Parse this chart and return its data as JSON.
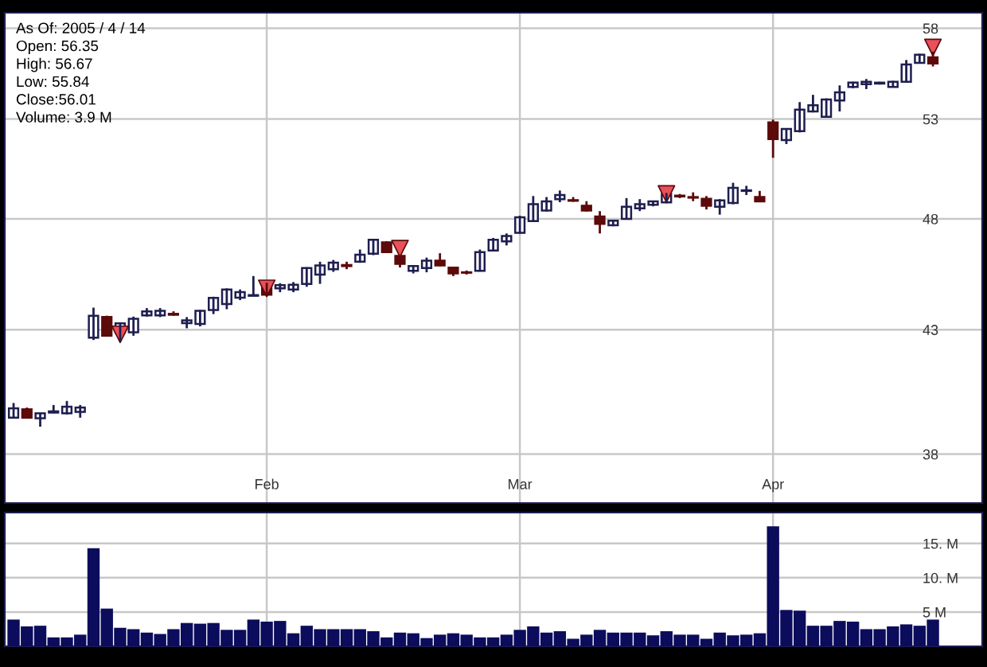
{
  "chart_data": [
    {
      "type": "candlestick",
      "annotations": [
        "As Of: 2005 / 4 / 14",
        "Open: 56.35",
        "High: 56.67",
        "Low: 55.84",
        "Close:56.01",
        "Volume: 3.9 M"
      ],
      "categories": [
        null,
        null,
        null,
        null,
        null,
        null,
        null,
        null,
        null,
        null,
        null,
        null,
        null,
        null,
        null,
        null,
        null,
        null,
        null,
        "Feb",
        null,
        null,
        null,
        null,
        null,
        null,
        null,
        null,
        null,
        null,
        null,
        null,
        null,
        null,
        null,
        null,
        null,
        null,
        "Mar",
        null,
        null,
        null,
        null,
        null,
        null,
        null,
        null,
        null,
        null,
        null,
        null,
        null,
        null,
        null,
        null,
        null,
        null,
        "Apr",
        null,
        null,
        null,
        null,
        null,
        null,
        null,
        null,
        null,
        null,
        null,
        null
      ],
      "ohlc": [
        [
          39.4,
          39.98,
          39.37,
          39.77
        ],
        [
          39.73,
          39.8,
          39.38,
          39.4
        ],
        [
          39.38,
          39.6,
          39.05,
          39.57
        ],
        [
          39.6,
          39.9,
          39.58,
          39.65
        ],
        [
          39.57,
          40.06,
          39.53,
          39.83
        ],
        [
          39.63,
          39.9,
          39.4,
          39.8
        ],
        [
          42.66,
          43.95,
          42.56,
          43.6
        ],
        [
          43.54,
          43.6,
          42.7,
          42.74
        ],
        [
          42.87,
          43.3,
          42.5,
          43.27
        ],
        [
          42.89,
          43.56,
          42.74,
          43.47
        ],
        [
          43.61,
          43.93,
          43.56,
          43.79
        ],
        [
          43.61,
          43.93,
          43.54,
          43.81
        ],
        [
          43.68,
          43.79,
          43.6,
          43.64
        ],
        [
          43.28,
          43.54,
          43.06,
          43.4
        ],
        [
          43.24,
          43.85,
          43.14,
          43.81
        ],
        [
          43.85,
          44.43,
          43.67,
          44.38
        ],
        [
          44.11,
          44.8,
          43.88,
          44.75
        ],
        [
          44.39,
          44.75,
          44.28,
          44.63
        ],
        [
          44.47,
          45.35,
          44.45,
          44.5
        ],
        [
          45.01,
          45.05,
          44.45,
          44.52
        ],
        [
          44.8,
          45.03,
          44.63,
          44.94
        ],
        [
          44.75,
          45.08,
          44.63,
          44.96
        ],
        [
          45.0,
          45.75,
          44.87,
          45.71
        ],
        [
          45.42,
          46.0,
          45.0,
          45.83
        ],
        [
          45.66,
          46.08,
          45.54,
          45.96
        ],
        [
          45.85,
          46.0,
          45.66,
          45.8
        ],
        [
          46.0,
          46.56,
          45.95,
          46.32
        ],
        [
          46.37,
          47.05,
          46.3,
          47.01
        ],
        [
          46.89,
          46.95,
          46.4,
          46.44
        ],
        [
          46.27,
          46.3,
          45.74,
          45.9
        ],
        [
          45.59,
          45.85,
          45.47,
          45.8
        ],
        [
          45.71,
          46.19,
          45.52,
          46.05
        ],
        [
          46.05,
          46.39,
          45.8,
          45.83
        ],
        [
          45.73,
          45.75,
          45.35,
          45.47
        ],
        [
          45.52,
          45.6,
          45.42,
          45.5
        ],
        [
          45.59,
          46.56,
          45.55,
          46.44
        ],
        [
          46.51,
          47.1,
          46.5,
          47.01
        ],
        [
          46.94,
          47.31,
          46.75,
          47.19
        ],
        [
          47.34,
          48.15,
          47.3,
          48.07
        ],
        [
          47.89,
          49.1,
          47.85,
          48.71
        ],
        [
          48.4,
          49.05,
          48.35,
          48.84
        ],
        [
          48.95,
          49.37,
          48.8,
          49.15
        ],
        [
          48.9,
          49.05,
          48.82,
          48.87
        ],
        [
          48.63,
          48.85,
          48.35,
          48.4
        ],
        [
          48.11,
          48.37,
          47.31,
          47.76
        ],
        [
          47.7,
          47.95,
          47.65,
          47.91
        ],
        [
          48.0,
          49.0,
          47.98,
          48.58
        ],
        [
          48.5,
          48.95,
          48.37,
          48.71
        ],
        [
          48.68,
          48.85,
          48.6,
          48.84
        ],
        [
          48.79,
          49.25,
          48.75,
          49.2
        ],
        [
          49.12,
          49.2,
          49.0,
          49.08
        ],
        [
          49.05,
          49.28,
          48.85,
          49.02
        ],
        [
          48.97,
          49.1,
          48.45,
          48.63
        ],
        [
          48.58,
          48.95,
          48.2,
          48.89
        ],
        [
          48.76,
          49.75,
          48.7,
          49.5
        ],
        [
          49.35,
          49.6,
          49.15,
          49.38
        ],
        [
          49.05,
          49.35,
          48.8,
          48.84
        ],
        [
          52.83,
          52.97,
          51.0,
          51.96
        ],
        [
          51.9,
          52.5,
          51.7,
          52.48
        ],
        [
          52.37,
          53.9,
          52.3,
          53.5
        ],
        [
          53.4,
          54.29,
          53.35,
          53.73
        ],
        [
          53.12,
          54.1,
          53.1,
          54.04
        ],
        [
          53.99,
          54.8,
          53.4,
          54.43
        ],
        [
          54.72,
          55.0,
          54.65,
          54.95
        ],
        [
          54.87,
          55.15,
          54.6,
          55.0
        ],
        [
          54.9,
          55.0,
          54.85,
          54.95
        ],
        [
          54.72,
          55.05,
          54.7,
          55.0
        ],
        [
          55.0,
          56.2,
          54.97,
          55.95
        ],
        [
          56.04,
          56.55,
          56.0,
          56.49
        ],
        [
          56.35,
          56.67,
          55.84,
          56.01
        ]
      ],
      "colors": [
        "#ffffff",
        "#5c0a0a",
        "#ffffff",
        "#ffffff",
        "#ffffff",
        "#ffffff",
        "#ffffff",
        "#5c0a0a",
        "#ffffff",
        "#ffffff",
        "#ffffff",
        "#ffffff",
        "#5c0a0a",
        "#ffffff",
        "#ffffff",
        "#ffffff",
        "#ffffff",
        "#ffffff",
        "#ffffff",
        "#5c0a0a",
        "#ffffff",
        "#ffffff",
        "#ffffff",
        "#ffffff",
        "#ffffff",
        "#5c0a0a",
        "#ffffff",
        "#ffffff",
        "#5c0a0a",
        "#5c0a0a",
        "#ffffff",
        "#ffffff",
        "#5c0a0a",
        "#5c0a0a",
        "#5c0a0a",
        "#ffffff",
        "#ffffff",
        "#ffffff",
        "#ffffff",
        "#ffffff",
        "#ffffff",
        "#ffffff",
        "#5c0a0a",
        "#5c0a0a",
        "#5c0a0a",
        "#ffffff",
        "#ffffff",
        "#ffffff",
        "#ffffff",
        "#ffffff",
        "#5c0a0a",
        "#5c0a0a",
        "#5c0a0a",
        "#ffffff",
        "#ffffff",
        "#ffffff",
        "#5c0a0a",
        "#5c0a0a",
        "#ffffff",
        "#ffffff",
        "#ffffff",
        "#ffffff",
        "#ffffff",
        "#ffffff",
        "#ffffff",
        "#ffffff",
        "#ffffff",
        "#ffffff",
        "#ffffff",
        "#5c0a0a"
      ],
      "series": [
        {
          "type": "scatter",
          "marker": "triangle",
          "color": "#e8505a",
          "values": [
            null,
            null,
            null,
            null,
            null,
            null,
            null,
            null,
            42.8,
            null,
            null,
            null,
            null,
            null,
            null,
            null,
            null,
            null,
            null,
            44.8,
            null,
            null,
            null,
            null,
            null,
            null,
            null,
            null,
            null,
            46.6,
            null,
            null,
            null,
            null,
            null,
            null,
            null,
            null,
            null,
            null,
            null,
            null,
            null,
            null,
            null,
            null,
            null,
            null,
            null,
            49.2,
            null,
            null,
            null,
            null,
            null,
            null,
            null,
            null,
            null,
            null,
            null,
            null,
            null,
            null,
            null,
            null,
            null,
            null,
            null,
            56.9
          ]
        }
      ],
      "log": true,
      "ylim": [
        36.2,
        58.9
      ],
      "yticks": [
        38,
        43,
        48,
        53,
        58
      ],
      "grid": true
    },
    {
      "type": "bar",
      "color": "#0c0c5c",
      "tick_labels": "y",
      "categories": [
        null,
        null,
        null,
        null,
        null,
        null,
        null,
        null,
        null,
        null,
        null,
        null,
        null,
        null,
        null,
        null,
        null,
        null,
        null,
        null,
        null,
        null,
        null,
        null,
        null,
        null,
        null,
        null,
        null,
        null,
        null,
        null,
        null,
        null,
        null,
        null,
        null,
        null,
        null,
        null,
        null,
        null,
        null,
        null,
        null,
        null,
        null,
        null,
        null,
        null,
        null,
        null,
        null,
        null,
        null,
        null,
        null,
        null,
        null,
        null,
        null,
        null,
        null,
        null,
        null,
        null,
        null,
        null,
        null,
        null
      ],
      "values": [
        3.9,
        2.9,
        3.0,
        1.3,
        1.3,
        1.7,
        14.3,
        5.5,
        2.7,
        2.5,
        2.0,
        1.8,
        2.5,
        3.4,
        3.3,
        3.4,
        2.4,
        2.4,
        3.9,
        3.6,
        3.7,
        1.9,
        3.0,
        2.5,
        2.5,
        2.5,
        2.5,
        2.2,
        1.3,
        2.0,
        1.9,
        1.2,
        1.7,
        1.9,
        1.7,
        1.3,
        1.3,
        1.7,
        2.4,
        2.9,
        2.0,
        2.2,
        1.1,
        1.7,
        2.4,
        2.0,
        2.0,
        2.0,
        1.6,
        2.2,
        1.7,
        1.7,
        1.1,
        2.0,
        1.6,
        1.7,
        1.9,
        17.5,
        5.3,
        5.2,
        3.0,
        3.0,
        3.7,
        3.6,
        2.5,
        2.5,
        2.9,
        3.2,
        3.0,
        3.9
      ],
      "ylim": [
        0,
        19.5
      ],
      "yticks": [
        {
          "value": 5,
          "label": "5 M"
        },
        {
          "value": 10,
          "label": "10. M"
        },
        {
          "value": 15,
          "label": "15. M"
        }
      ],
      "grid": true
    }
  ]
}
